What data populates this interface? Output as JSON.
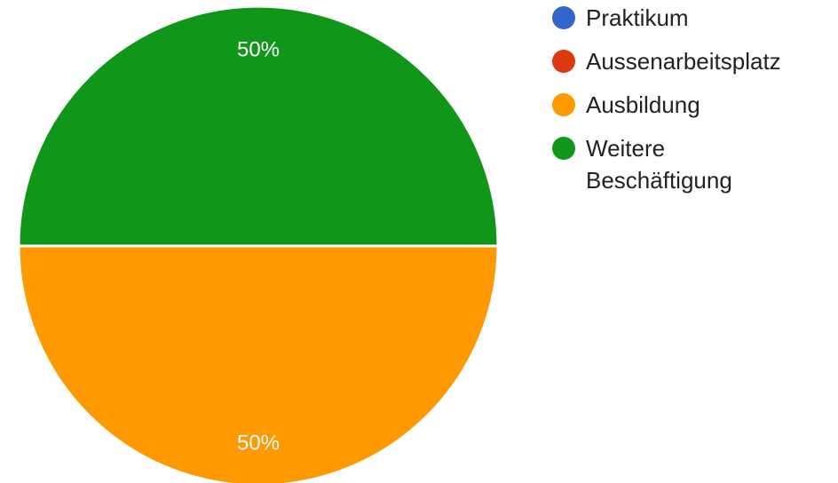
{
  "chart_data": {
    "type": "pie",
    "categories": [
      "Praktikum",
      "Aussenarbeitsplatz",
      "Ausbildung",
      "Weitere Beschäftigung"
    ],
    "values": [
      0,
      0,
      50,
      50
    ],
    "slice_labels": [
      "",
      "",
      "50%",
      "50%"
    ],
    "colors": [
      "#3366cc",
      "#dc3912",
      "#ff9900",
      "#109618"
    ],
    "legend_position": "right",
    "start_angle_deg": 90,
    "direction": "clockwise"
  }
}
